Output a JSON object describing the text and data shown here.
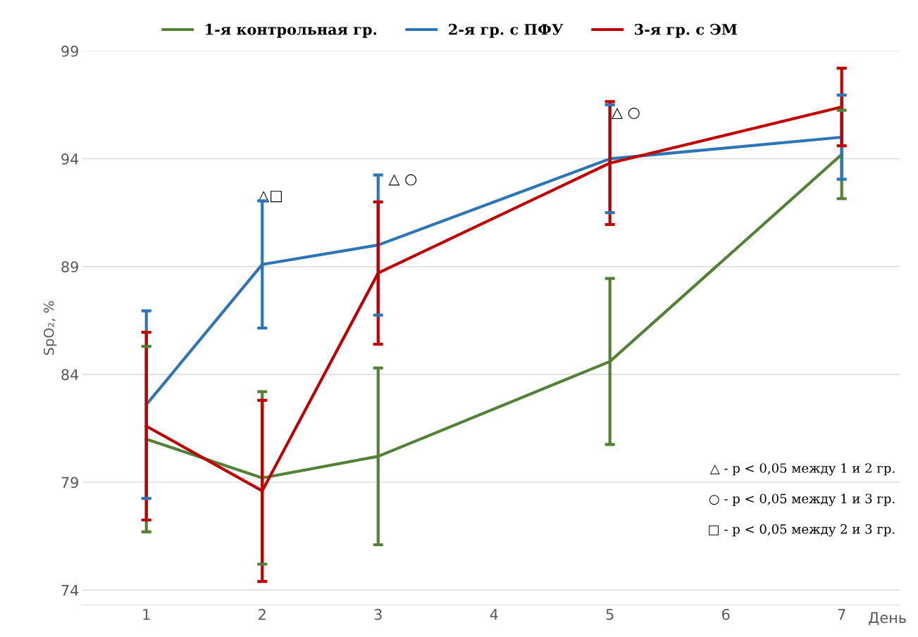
{
  "chart_data": {
    "type": "line",
    "ylabel": "SpO₂, %",
    "xlabel": "День",
    "x": [
      1,
      2,
      3,
      5,
      7
    ],
    "series": [
      {
        "name": "1-я контрольная гр.",
        "color": "#538135",
        "values": [
          81.0,
          79.2,
          80.2,
          84.6,
          94.2
        ],
        "errors": [
          4.3,
          4.0,
          4.1,
          3.85,
          2.05
        ]
      },
      {
        "name": "2-я гр. с ПФУ",
        "color": "#2e75b6",
        "values": [
          82.6,
          89.1,
          90.0,
          94.0,
          95.0
        ],
        "errors": [
          4.35,
          2.95,
          3.25,
          2.5,
          1.95
        ]
      },
      {
        "name": "3-я гр. с ЭМ",
        "color": "#c00000",
        "values": [
          81.6,
          78.6,
          88.7,
          93.8,
          96.4
        ],
        "errors": [
          4.35,
          4.2,
          3.3,
          2.85,
          1.8
        ]
      }
    ],
    "xlim": [
      0.45,
      7.5
    ],
    "xticks": [
      1,
      2,
      3,
      4,
      5,
      6,
      7
    ],
    "ylim": [
      73.3,
      99
    ],
    "yticks": [
      74,
      79,
      84,
      89,
      94,
      99
    ],
    "grid": "y",
    "legend": "top",
    "marker": "none",
    "line_style": "solid",
    "annotations": [
      "△□",
      "△ ○",
      "△ ○",
      "△ - р < 0,05 между 1 и 2 гр.",
      "○ - р < 0,05 между 1 и 3 гр.",
      "□ - р < 0,05 между 2 и 3 гр."
    ]
  }
}
